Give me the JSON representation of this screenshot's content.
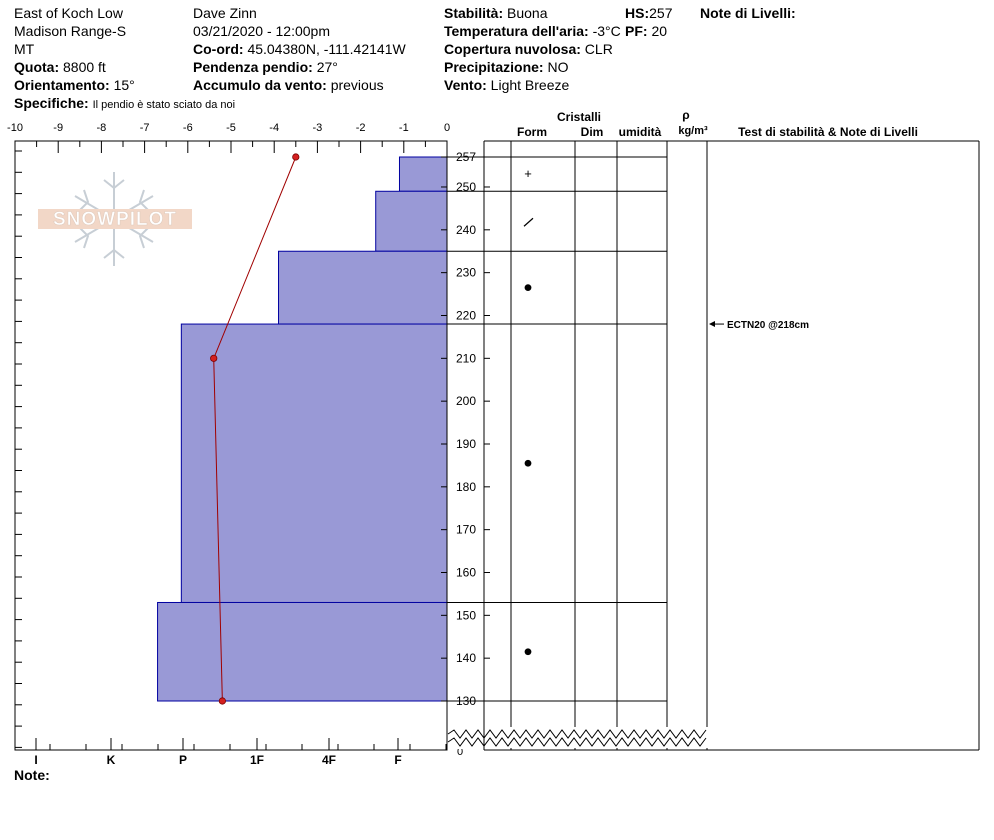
{
  "header": {
    "location": "East of Koch Low",
    "range": "Madison Range-S",
    "state": "MT",
    "elevation_label": "Quota:",
    "elevation_value": "8800 ft",
    "aspect_label": "Orientamento:",
    "aspect_value": "15°",
    "specifics_label": "Specifiche:",
    "specifics_value": "Il pendio è stato sciato da noi",
    "observer": "Dave Zinn",
    "datetime": "03/21/2020 - 12:00pm",
    "coord_label": "Co-ord:",
    "coord_value": "45.04380N, -111.42141W",
    "slope_label": "Pendenza pendio:",
    "slope_value": "27°",
    "wind_load_label": "Accumulo da vento:",
    "wind_load_value": "previous",
    "stability_label": "Stabilità:",
    "stability_value": "Buona",
    "air_temp_label": "Temperatura dell'aria:",
    "air_temp_value": "-3°C",
    "cloud_label": "Copertura nuvolosa:",
    "cloud_value": "CLR",
    "precip_label": "Precipitazione:",
    "precip_value": "NO",
    "wind_label": "Vento:",
    "wind_value": "Light Breeze",
    "hs_label": "HS:",
    "hs_value": "257",
    "pf_label": "PF:",
    "pf_value": "20",
    "layer_notes_label": "Note di Livelli:"
  },
  "footer": {
    "note_label": "Note:"
  },
  "logo": {
    "text": "SNOWPILOT"
  },
  "columns": {
    "crystals": "Cristalli",
    "form": "Form",
    "size": "Dim",
    "moisture": "umidità",
    "rho": "ρ",
    "density_unit": "kg/m³",
    "tests": "Test di stabilità & Note di Livelli"
  },
  "chart_data": {
    "type": "snow-profile",
    "temperature_axis": {
      "ticks": [
        "-10",
        "-9",
        "-8",
        "-7",
        "-6",
        "-5",
        "-4",
        "-3",
        "-2",
        "-1",
        "0"
      ],
      "range": [
        -10,
        0
      ]
    },
    "hardness_axis": {
      "labels": [
        "I",
        "K",
        "P",
        "1F",
        "4F",
        "F"
      ]
    },
    "depth_axis": {
      "ticks": [
        257,
        250,
        240,
        230,
        220,
        210,
        200,
        190,
        180,
        170,
        160,
        150,
        140,
        130
      ],
      "range": [
        130,
        257
      ],
      "bottom_label": "0"
    },
    "temperature_profile": [
      {
        "depth": 257,
        "temp": -3.5
      },
      {
        "depth": 210,
        "temp": -5.4
      },
      {
        "depth": 130,
        "temp": -5.2
      }
    ],
    "layers": [
      {
        "top": 257,
        "bottom": 249,
        "hardness": 1.1,
        "form": "+"
      },
      {
        "top": 249,
        "bottom": 235,
        "hardness": 1.65,
        "form": "/"
      },
      {
        "top": 235,
        "bottom": 218,
        "hardness": 3.9,
        "form": "●"
      },
      {
        "top": 218,
        "bottom": 153,
        "hardness": 6.15,
        "form": "●"
      },
      {
        "top": 153,
        "bottom": 130,
        "hardness": 6.7,
        "form": "●"
      }
    ],
    "tests": [
      {
        "depth": 218,
        "label": "ECTN20 @218cm"
      }
    ],
    "colors": {
      "layer_fill": "#9999d6",
      "layer_stroke": "#0000a0",
      "temp_line": "#a00000"
    }
  }
}
